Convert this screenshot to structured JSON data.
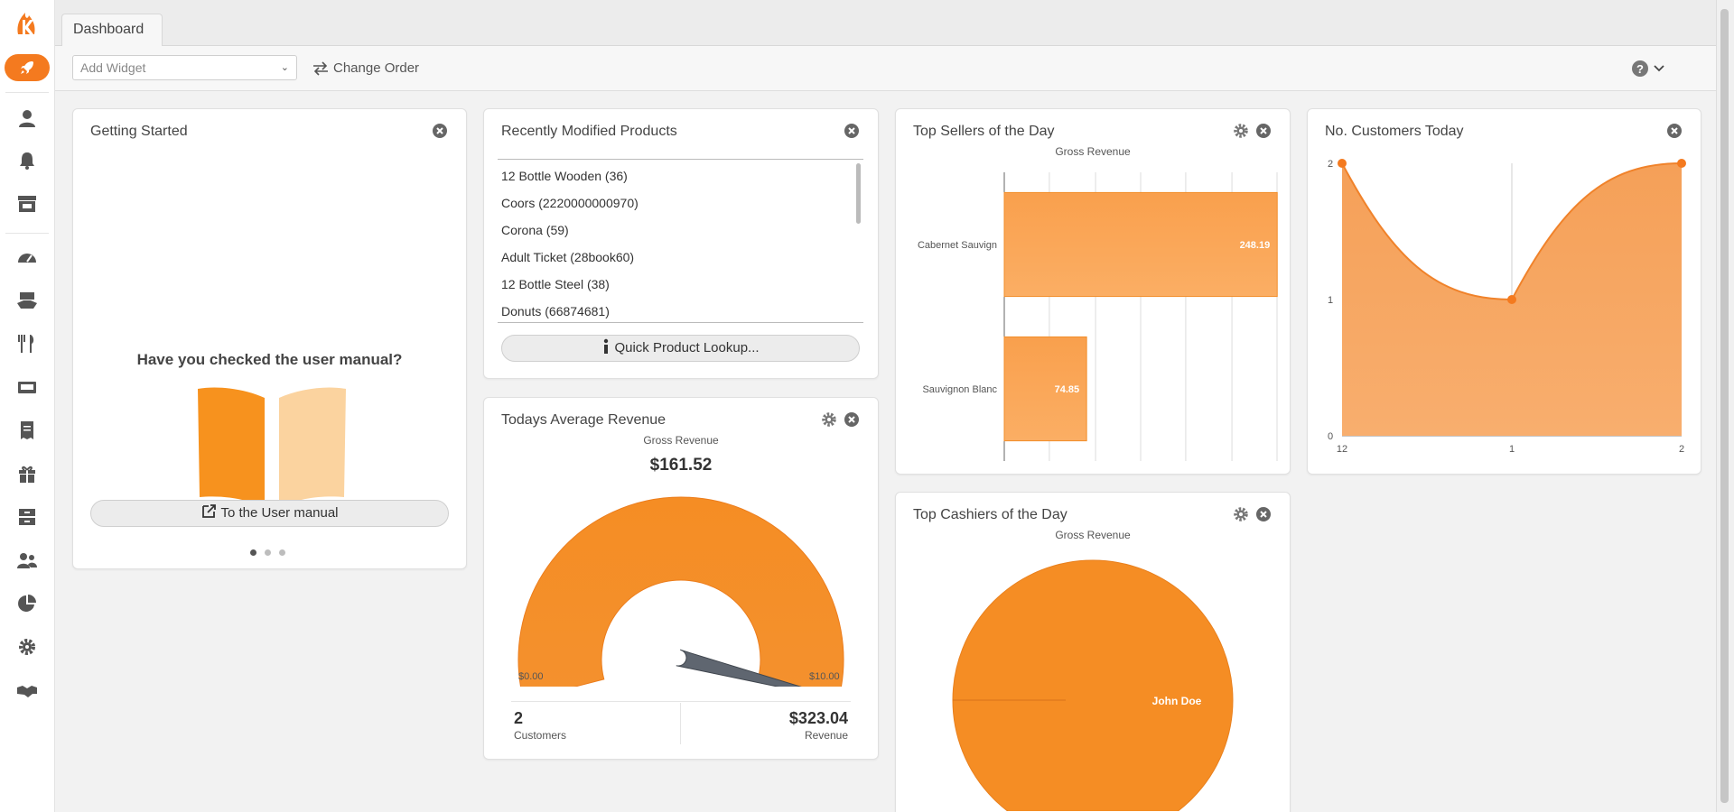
{
  "colors": {
    "accent": "#f47a1f",
    "bar_fill": "#f9a04d",
    "area_fill": "#f6a35b",
    "dark": "#555555"
  },
  "sidebar": {
    "icons": [
      "logo-icon",
      "rocket-icon",
      "user-icon",
      "bell-icon",
      "store-icon",
      "dashboard-icon",
      "handshake-box-icon",
      "utensils-icon",
      "register-icon",
      "receipt-icon",
      "gift-icon",
      "cabinet-icon",
      "users-icon",
      "pie-chart-icon",
      "gear-icon",
      "handshake-icon"
    ]
  },
  "tabs": [
    {
      "label": "Dashboard"
    }
  ],
  "toolbar": {
    "add_widget_placeholder": "Add Widget",
    "change_order_label": "Change Order",
    "help_icon": "question-icon"
  },
  "cards": {
    "getting_started": {
      "title": "Getting Started",
      "question": "Have you checked the user manual?",
      "button_label": "To the User manual",
      "pages": 3,
      "active_page": 1
    },
    "recent_products": {
      "title": "Recently Modified Products",
      "items": [
        "12 Bottle Wooden (36)",
        "Coors (2220000000970)",
        "Corona (59)",
        "Adult Ticket (28book60)",
        "12 Bottle Steel (38)",
        "Donuts (66874681)"
      ],
      "button_label": "Quick Product Lookup..."
    },
    "avg_revenue": {
      "title": "Todays Average Revenue",
      "subtitle": "Gross Revenue",
      "value": "$161.52",
      "gauge_min": "$0.00",
      "gauge_max": "$10.00",
      "customers_value": "2",
      "customers_label": "Customers",
      "revenue_value": "$323.04",
      "revenue_label": "Revenue"
    },
    "top_sellers": {
      "title": "Top Sellers of the Day"
    },
    "top_cashiers": {
      "title": "Top Cashiers of the Day"
    },
    "customers_today": {
      "title": "No. Customers Today"
    }
  },
  "chart_data": [
    {
      "type": "bar",
      "orientation": "horizontal",
      "title": "Top Sellers of the Day",
      "subtitle": "Gross Revenue",
      "categories": [
        "Cabernet Sauvign",
        "Sauvignon Blanc"
      ],
      "values": [
        248.19,
        74.85
      ],
      "data_labels": [
        "248.19",
        "74.85"
      ],
      "xlim": [
        0,
        248
      ],
      "xticks": [
        "0",
        "41",
        "83",
        "124",
        "165",
        "207",
        "248"
      ],
      "grid": true
    },
    {
      "type": "area",
      "title": "No. Customers Today",
      "x": [
        "12",
        "1",
        "2"
      ],
      "values": [
        2,
        1,
        2
      ],
      "ylim": [
        0,
        2
      ],
      "yticks": [
        "0",
        "1",
        "2"
      ],
      "xticks": [
        "12",
        "1",
        "2"
      ],
      "grid": true
    },
    {
      "type": "pie",
      "title": "Top Cashiers of the Day",
      "subtitle": "Gross Revenue",
      "labels": [
        "John Doe"
      ],
      "values": [
        100
      ]
    },
    {
      "type": "gauge",
      "title": "Todays Average Revenue",
      "subtitle": "Gross Revenue",
      "value": 161.52,
      "min": 0,
      "max": 10,
      "min_label": "$0.00",
      "max_label": "$10.00"
    }
  ]
}
